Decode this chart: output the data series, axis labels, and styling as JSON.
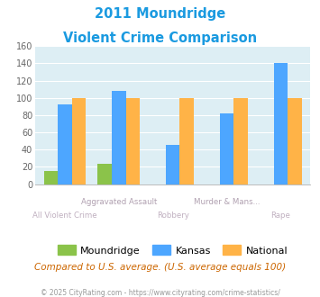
{
  "title_line1": "2011 Moundridge",
  "title_line2": "Violent Crime Comparison",
  "categories": [
    "All Violent Crime",
    "Aggravated Assault",
    "Robbery",
    "Murder & Mans...",
    "Rape"
  ],
  "moundridge": [
    15,
    24,
    0,
    0,
    0
  ],
  "kansas": [
    92,
    108,
    45,
    82,
    140
  ],
  "national": [
    100,
    100,
    100,
    100,
    100
  ],
  "colors": {
    "moundridge": "#8bc34a",
    "kansas": "#4da6ff",
    "national": "#ffb347",
    "title": "#1a9ae0",
    "grid": "#ffffff",
    "axis_bg": "#ddeef4",
    "upper_xlabel": "#b0a0b0",
    "lower_xlabel": "#c0b0c0",
    "footnote": "#cc6600",
    "copyright": "#999999"
  },
  "ylim": [
    0,
    160
  ],
  "yticks": [
    0,
    20,
    40,
    60,
    80,
    100,
    120,
    140,
    160
  ],
  "footnote": "Compared to U.S. average. (U.S. average equals 100)",
  "copyright": "© 2025 CityRating.com - https://www.cityrating.com/crime-statistics/",
  "upper_x_labels": [
    "",
    "Aggravated Assault",
    "",
    "Murder & Mans...",
    ""
  ],
  "lower_x_labels": [
    "All Violent Crime",
    "",
    "Robbery",
    "",
    "Rape"
  ]
}
